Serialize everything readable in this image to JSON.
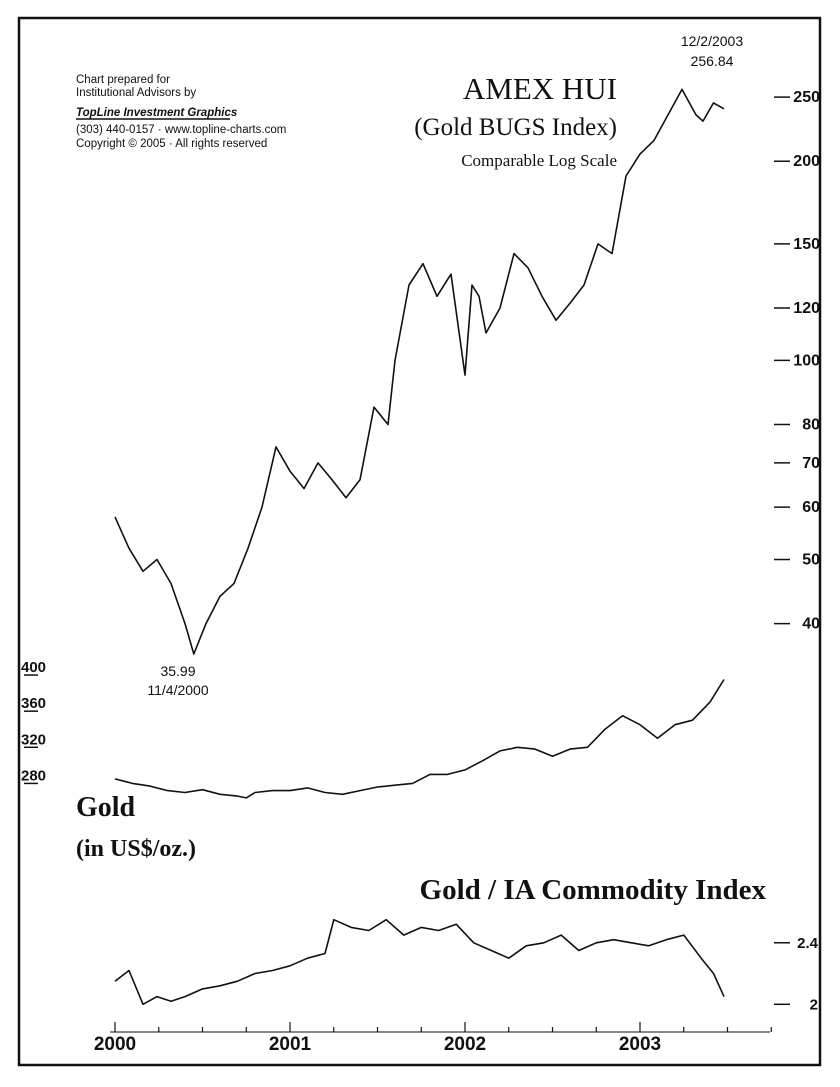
{
  "credits": {
    "line1": "Chart prepared for",
    "line2": "Institutional Advisors by",
    "brand": "TopLine Investment Graphics",
    "contact": "(303) 440-0157 · www.topline-charts.com",
    "copyright": "Copyright © 2005 · All rights reserved"
  },
  "colors": {
    "background": "#ffffff",
    "ink": "#111111"
  },
  "chart_data": [
    {
      "type": "line",
      "title": "AMEX HUI",
      "subtitle": "(Gold BUGS Index)",
      "scale_note": "Comparable Log Scale",
      "yscale": "log",
      "ylim": [
        35,
        270
      ],
      "yticks": [
        40,
        50,
        60,
        70,
        80,
        100,
        120,
        150,
        200,
        250
      ],
      "x": [
        2000.0,
        2000.08,
        2000.16,
        2000.24,
        2000.32,
        2000.4,
        2000.45,
        2000.52,
        2000.6,
        2000.68,
        2000.76,
        2000.84,
        2000.92,
        2001.0,
        2001.04,
        2001.08,
        2001.16,
        2001.24,
        2001.32,
        2001.4,
        2001.48,
        2001.56,
        2001.6,
        2001.68,
        2001.76,
        2001.84,
        2001.92,
        2002.0,
        2002.04,
        2002.08,
        2002.12,
        2002.2,
        2002.28,
        2002.36,
        2002.44,
        2002.52,
        2002.6,
        2002.68,
        2002.76,
        2002.84,
        2002.92,
        2003.0,
        2003.08,
        2003.16,
        2003.24,
        2003.32,
        2003.36,
        2003.42,
        2003.48
      ],
      "values": [
        58,
        52,
        48,
        50,
        46,
        40,
        35.99,
        40,
        44,
        46,
        52,
        60,
        74,
        68,
        66,
        64,
        70,
        66,
        62,
        66,
        85,
        80,
        100,
        130,
        140,
        125,
        135,
        95,
        130,
        125,
        110,
        120,
        145,
        138,
        125,
        115,
        122,
        130,
        150,
        145,
        190,
        205,
        215,
        235,
        256.84,
        235,
        230,
        245,
        240
      ],
      "annotations": [
        {
          "date": "12/2/2003",
          "value": "256.84"
        },
        {
          "date": "11/4/2000",
          "value": "35.99"
        }
      ]
    },
    {
      "type": "line",
      "title": "Gold",
      "subtitle": "(in US$/oz.)",
      "ylim": [
        255,
        410
      ],
      "yticks": [
        280,
        320,
        360,
        400
      ],
      "x": [
        2000.0,
        2000.1,
        2000.2,
        2000.3,
        2000.4,
        2000.5,
        2000.6,
        2000.7,
        2000.75,
        2000.8,
        2000.9,
        2001.0,
        2001.1,
        2001.2,
        2001.3,
        2001.4,
        2001.5,
        2001.6,
        2001.7,
        2001.8,
        2001.9,
        2002.0,
        2002.1,
        2002.2,
        2002.3,
        2002.4,
        2002.5,
        2002.6,
        2002.7,
        2002.8,
        2002.9,
        2003.0,
        2003.1,
        2003.2,
        2003.3,
        2003.4,
        2003.48
      ],
      "values": [
        285,
        280,
        277,
        272,
        270,
        273,
        268,
        266,
        264,
        270,
        272,
        272,
        275,
        270,
        268,
        272,
        276,
        278,
        280,
        290,
        290,
        295,
        305,
        316,
        320,
        318,
        310,
        318,
        320,
        340,
        355,
        345,
        330,
        345,
        350,
        370,
        395
      ]
    },
    {
      "type": "line",
      "title": "Gold / IA Commodity Index",
      "ylim": [
        1.95,
        2.6
      ],
      "yticks": [
        2.0,
        2.4
      ],
      "x": [
        2000.0,
        2000.08,
        2000.16,
        2000.24,
        2000.32,
        2000.4,
        2000.5,
        2000.6,
        2000.7,
        2000.8,
        2000.9,
        2001.0,
        2001.1,
        2001.2,
        2001.25,
        2001.35,
        2001.45,
        2001.55,
        2001.65,
        2001.75,
        2001.85,
        2001.95,
        2002.05,
        2002.15,
        2002.25,
        2002.35,
        2002.45,
        2002.55,
        2002.65,
        2002.75,
        2002.85,
        2002.95,
        2003.05,
        2003.15,
        2003.25,
        2003.35,
        2003.42,
        2003.48
      ],
      "values": [
        2.15,
        2.22,
        2.0,
        2.05,
        2.02,
        2.05,
        2.1,
        2.12,
        2.15,
        2.2,
        2.22,
        2.25,
        2.3,
        2.33,
        2.55,
        2.5,
        2.48,
        2.55,
        2.45,
        2.5,
        2.48,
        2.52,
        2.4,
        2.35,
        2.3,
        2.38,
        2.4,
        2.45,
        2.35,
        2.4,
        2.42,
        2.4,
        2.38,
        2.42,
        2.45,
        2.3,
        2.2,
        2.05
      ]
    }
  ],
  "x_axis": {
    "labels": [
      "2000",
      "2001",
      "2002",
      "2003"
    ],
    "years": [
      2000,
      2001,
      2002,
      2003
    ]
  }
}
